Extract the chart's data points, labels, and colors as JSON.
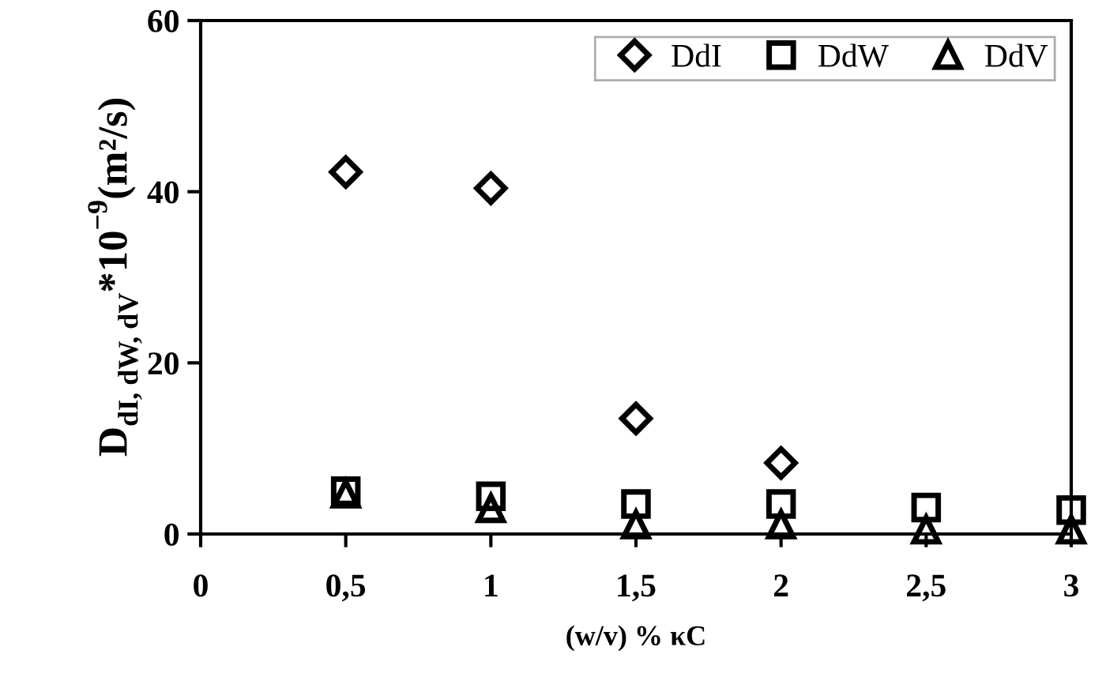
{
  "chart_data": {
    "type": "scatter",
    "xlabel": "(w/v) % κC",
    "ylabel": "D$_{dI, dW, dV}$*10$^{−9}$(m²/s)",
    "x": [
      0.5,
      1,
      1.5,
      2,
      2.5,
      3
    ],
    "series": [
      {
        "name": "DdI",
        "color": "#000000",
        "marker": "diamond",
        "x": [
          0.5,
          1,
          1.5,
          2
        ],
        "values": [
          42.3,
          40.4,
          13.5,
          8.3
        ]
      },
      {
        "name": "DdW",
        "color": "#000000",
        "marker": "square",
        "values": [
          5.0,
          4.4,
          3.5,
          3.5,
          3.1,
          2.8
        ]
      },
      {
        "name": "DdV",
        "color": "#000000",
        "marker": "triangle",
        "values": [
          4.7,
          3.0,
          1.1,
          1.1,
          0.5,
          0.5
        ]
      }
    ],
    "xlim": [
      0,
      3
    ],
    "xticks": [
      0,
      {
        "value": 0.5,
        "label": "0,5"
      },
      1,
      {
        "value": 1.5,
        "label": "1,5"
      },
      2,
      {
        "value": 2.5,
        "label": "2,5"
      },
      3
    ],
    "ylim": [
      0,
      60
    ],
    "yticks": [
      0,
      20,
      40,
      60
    ],
    "grid": false,
    "legend": "top right"
  }
}
